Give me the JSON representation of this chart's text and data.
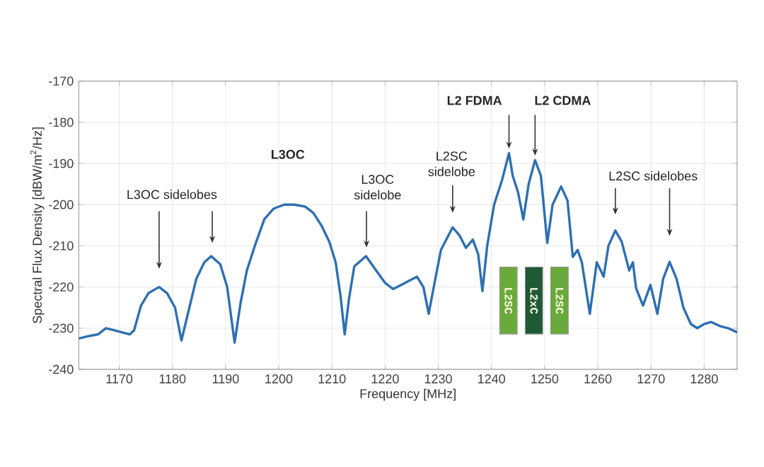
{
  "chart_data": {
    "type": "line",
    "xlabel": "Frequency [MHz]",
    "ylabel": "Spectral Flux Density [dBW/m$^{2}$/Hz]",
    "xlim": [
      1162.4,
      1286.2
    ],
    "ylim": [
      -240,
      -170
    ],
    "xticks": [
      1170,
      1180,
      1190,
      1200,
      1210,
      1220,
      1230,
      1240,
      1250,
      1260,
      1270,
      1280
    ],
    "yticks": [
      -240,
      -230,
      -220,
      -210,
      -200,
      -190,
      -180,
      -170
    ],
    "grid": true,
    "x": [
      1162.4,
      1164,
      1166,
      1167.5,
      1169,
      1170.5,
      1172,
      1172.8,
      1174.1,
      1175.5,
      1177.5,
      1179,
      1180.5,
      1181.7,
      1183,
      1184.5,
      1186,
      1187.3,
      1189,
      1190.3,
      1191.7,
      1192.8,
      1194,
      1195.5,
      1197.3,
      1199,
      1201,
      1203,
      1205,
      1206.5,
      1208,
      1209.5,
      1210.7,
      1211.6,
      1212.4,
      1213.2,
      1214.2,
      1216.4,
      1218.6,
      1220,
      1221.5,
      1223,
      1224.5,
      1226,
      1227.2,
      1228.2,
      1229.3,
      1230.5,
      1232.7,
      1234,
      1235.2,
      1236.5,
      1237.5,
      1238.3,
      1239.2,
      1240.5,
      1242,
      1243.3,
      1244,
      1245,
      1246,
      1247,
      1248.2,
      1249.3,
      1250.5,
      1251.5,
      1253.1,
      1254.3,
      1255.3,
      1256.2,
      1257,
      1258.5,
      1259.8,
      1261.1,
      1262,
      1263.3,
      1264.5,
      1265.9,
      1266.6,
      1267.2,
      1268.5,
      1269.9,
      1271.2,
      1272.3,
      1273.5,
      1274.8,
      1276.1,
      1277.5,
      1278.7,
      1280,
      1281.3,
      1283,
      1284.5,
      1286.2
    ],
    "series": [
      {
        "color": "#2e70b0",
        "values": [
          -232.5,
          -232,
          -231.5,
          -230,
          -230.5,
          -231,
          -231.5,
          -230.5,
          -224.5,
          -221.5,
          -220,
          -221.5,
          -225,
          -233,
          -226,
          -218,
          -214,
          -212.5,
          -214.5,
          -220,
          -233.5,
          -224,
          -216,
          -210,
          -203.5,
          -201,
          -200,
          -200,
          -200.5,
          -202,
          -205,
          -209,
          -214,
          -222,
          -231.5,
          -223,
          -215,
          -212.5,
          -216.5,
          -219,
          -220.5,
          -219.5,
          -218.5,
          -217.5,
          -220,
          -226.5,
          -219,
          -211,
          -205.5,
          -207.5,
          -210.5,
          -208.5,
          -212,
          -221,
          -210,
          -200,
          -194,
          -187.5,
          -193,
          -197,
          -203.6,
          -195,
          -189.2,
          -193,
          -209.3,
          -200,
          -195.6,
          -199,
          -212.7,
          -211,
          -214,
          -226.5,
          -214,
          -217.5,
          -210,
          -206.3,
          -209,
          -216,
          -214,
          -220.3,
          -224.5,
          -219.5,
          -226.5,
          -218,
          -213.9,
          -218,
          -225,
          -229,
          -230,
          -229,
          -228.5,
          -229.5,
          -230,
          -231
        ]
      }
    ],
    "annotations": [
      "L3OC sidelobes",
      "L3OC",
      "L3OC sidelobe",
      "L2SC sidelobe",
      {
        "text": "L2 FDMA",
        "x": 1243.3,
        "y": -187.5
      },
      {
        "text": "L2 CDMA",
        "x": 1248.2,
        "y": -189.2
      },
      "L2SC sidelobes",
      "L2SC",
      "L2xC",
      "L2SC"
    ]
  }
}
